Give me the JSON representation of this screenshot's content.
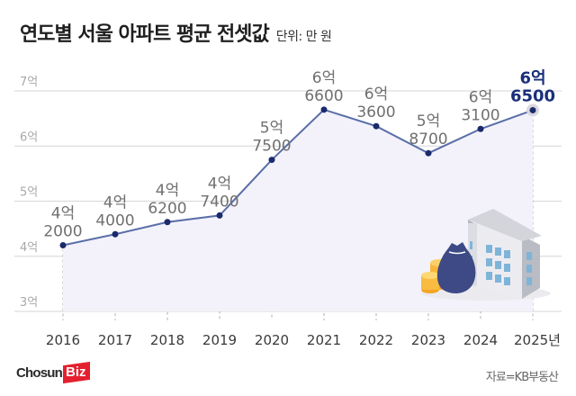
{
  "header": {
    "title": "연도별 서울 아파트 평균 전셋값",
    "unit": "단위: 만 원"
  },
  "footer": {
    "logo_main": "Chosun",
    "logo_accent": "Biz",
    "source": "자료=KB부동산"
  },
  "colors": {
    "line": "#5a6ea8",
    "point": "#1a2a6c",
    "highlight_label": "#1a2f7a",
    "label": "#707070",
    "grid": "#d6d6d6",
    "area_fill": "#f3f2fb",
    "logo_red": "#e5202e"
  },
  "chart_data": {
    "type": "line",
    "title": "연도별 서울 아파트 평균 전셋값",
    "subtitle": "단위: 만 원",
    "xlabel": "",
    "ylabel": "",
    "categories": [
      "2016",
      "2017",
      "2018",
      "2019",
      "2020",
      "2021",
      "2022",
      "2023",
      "2024",
      "2025년"
    ],
    "series": [
      {
        "name": "서울 아파트 평균 전셋값",
        "values": [
          42000,
          44000,
          46200,
          47400,
          57500,
          66600,
          63600,
          58700,
          63100,
          66500
        ]
      }
    ],
    "data_labels": [
      [
        "4억",
        "2000"
      ],
      [
        "4억",
        "4000"
      ],
      [
        "4억",
        "6200"
      ],
      [
        "4억",
        "7400"
      ],
      [
        "5억",
        "7500"
      ],
      [
        "6억",
        "6600"
      ],
      [
        "6억",
        "3600"
      ],
      [
        "5억",
        "8700"
      ],
      [
        "6억",
        "3100"
      ],
      [
        "6억",
        "6500"
      ]
    ],
    "y_ticks": [
      "3억",
      "4억",
      "5억",
      "6억",
      "7억"
    ],
    "ylim": [
      30000,
      70000
    ],
    "grid": true,
    "legend": "none",
    "highlight_index": 9,
    "source": "자료=KB부동산"
  }
}
